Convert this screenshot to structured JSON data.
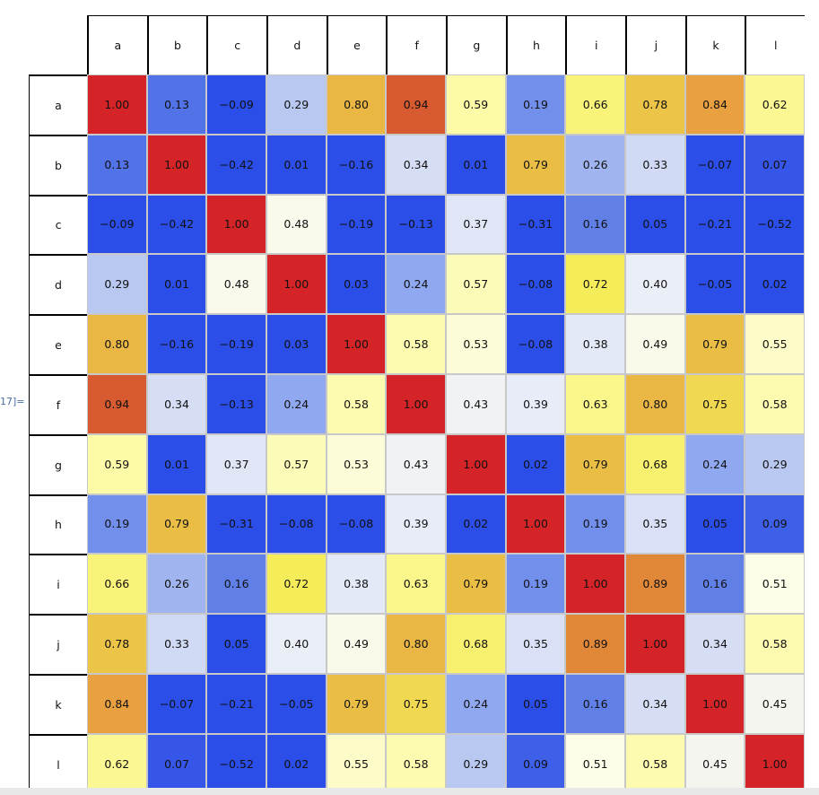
{
  "output_label": "17]=",
  "table": {
    "columns": [
      "a",
      "b",
      "c",
      "d",
      "e",
      "f",
      "g",
      "h",
      "i",
      "j",
      "k",
      "l"
    ],
    "rows": [
      {
        "label": "a",
        "values": [
          "1.00",
          "0.13",
          "−0.09",
          "0.29",
          "0.80",
          "0.94",
          "0.59",
          "0.19",
          "0.66",
          "0.78",
          "0.84",
          "0.62"
        ]
      },
      {
        "label": "b",
        "values": [
          "0.13",
          "1.00",
          "−0.42",
          "0.01",
          "−0.16",
          "0.34",
          "0.01",
          "0.79",
          "0.26",
          "0.33",
          "−0.07",
          "0.07"
        ]
      },
      {
        "label": "c",
        "values": [
          "−0.09",
          "−0.42",
          "1.00",
          "0.48",
          "−0.19",
          "−0.13",
          "0.37",
          "−0.31",
          "0.16",
          "0.05",
          "−0.21",
          "−0.52"
        ]
      },
      {
        "label": "d",
        "values": [
          "0.29",
          "0.01",
          "0.48",
          "1.00",
          "0.03",
          "0.24",
          "0.57",
          "−0.08",
          "0.72",
          "0.40",
          "−0.05",
          "0.02"
        ]
      },
      {
        "label": "e",
        "values": [
          "0.80",
          "−0.16",
          "−0.19",
          "0.03",
          "1.00",
          "0.58",
          "0.53",
          "−0.08",
          "0.38",
          "0.49",
          "0.79",
          "0.55"
        ]
      },
      {
        "label": "f",
        "values": [
          "0.94",
          "0.34",
          "−0.13",
          "0.24",
          "0.58",
          "1.00",
          "0.43",
          "0.39",
          "0.63",
          "0.80",
          "0.75",
          "0.58"
        ]
      },
      {
        "label": "g",
        "values": [
          "0.59",
          "0.01",
          "0.37",
          "0.57",
          "0.53",
          "0.43",
          "1.00",
          "0.02",
          "0.79",
          "0.68",
          "0.24",
          "0.29"
        ]
      },
      {
        "label": "h",
        "values": [
          "0.19",
          "0.79",
          "−0.31",
          "−0.08",
          "−0.08",
          "0.39",
          "0.02",
          "1.00",
          "0.19",
          "0.35",
          "0.05",
          "0.09"
        ]
      },
      {
        "label": "i",
        "values": [
          "0.66",
          "0.26",
          "0.16",
          "0.72",
          "0.38",
          "0.63",
          "0.79",
          "0.19",
          "1.00",
          "0.89",
          "0.16",
          "0.51"
        ]
      },
      {
        "label": "j",
        "values": [
          "0.78",
          "0.33",
          "0.05",
          "0.40",
          "0.49",
          "0.80",
          "0.68",
          "0.35",
          "0.89",
          "1.00",
          "0.34",
          "0.58"
        ]
      },
      {
        "label": "k",
        "values": [
          "0.84",
          "−0.07",
          "−0.21",
          "−0.05",
          "0.79",
          "0.75",
          "0.24",
          "0.05",
          "0.16",
          "0.34",
          "1.00",
          "0.45"
        ]
      },
      {
        "label": "l",
        "values": [
          "0.62",
          "0.07",
          "−0.52",
          "0.02",
          "0.55",
          "0.58",
          "0.29",
          "0.09",
          "0.51",
          "0.58",
          "0.45",
          "1.00"
        ]
      }
    ]
  }
}
